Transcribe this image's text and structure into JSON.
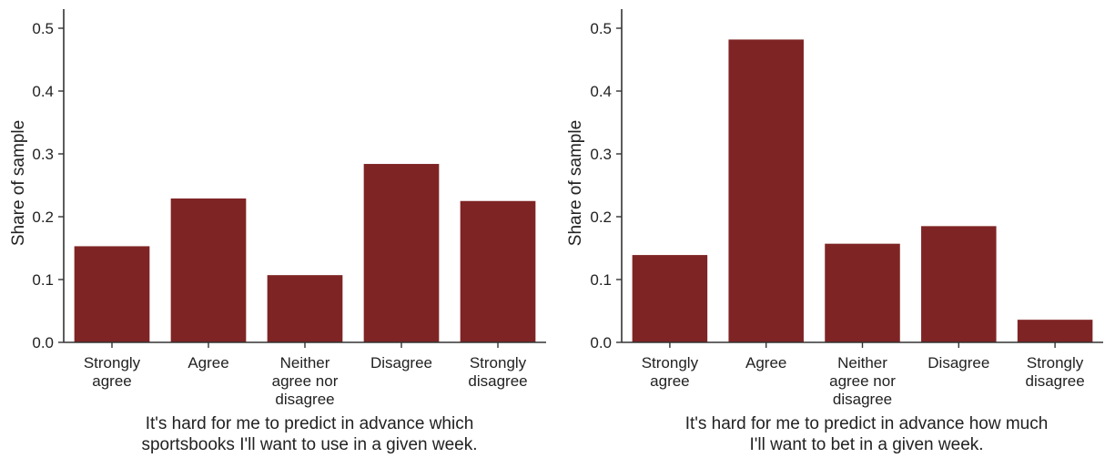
{
  "chart_data": [
    {
      "type": "bar",
      "categories": [
        [
          "Strongly",
          "agree"
        ],
        [
          "Agree"
        ],
        [
          "Neither",
          "agree nor",
          "disagree"
        ],
        [
          "Disagree"
        ],
        [
          "Strongly",
          "disagree"
        ]
      ],
      "values": [
        0.153,
        0.229,
        0.107,
        0.284,
        0.225
      ],
      "xlabel": [
        "It's hard for me to predict in advance which",
        "sportsbooks I'll want to use in a given week."
      ],
      "ylabel": "Share of sample",
      "ylim": [
        0,
        0.53
      ],
      "yticks": [
        "0.0",
        "0.1",
        "0.2",
        "0.3",
        "0.4",
        "0.5"
      ],
      "ytick_values": [
        0,
        0.1,
        0.2,
        0.3,
        0.4,
        0.5
      ],
      "grid": false,
      "color": "#7f2424"
    },
    {
      "type": "bar",
      "categories": [
        [
          "Strongly",
          "agree"
        ],
        [
          "Agree"
        ],
        [
          "Neither",
          "agree nor",
          "disagree"
        ],
        [
          "Disagree"
        ],
        [
          "Strongly",
          "disagree"
        ]
      ],
      "values": [
        0.139,
        0.482,
        0.157,
        0.185,
        0.036
      ],
      "xlabel": [
        "It's hard for me to predict in advance how much",
        "I'll want to bet in a given week."
      ],
      "ylabel": "Share of sample",
      "ylim": [
        0,
        0.53
      ],
      "yticks": [
        "0.0",
        "0.1",
        "0.2",
        "0.3",
        "0.4",
        "0.5"
      ],
      "ytick_values": [
        0,
        0.1,
        0.2,
        0.3,
        0.4,
        0.5
      ],
      "grid": false,
      "color": "#7f2424"
    }
  ]
}
